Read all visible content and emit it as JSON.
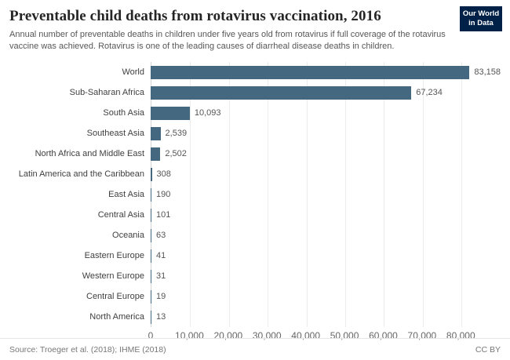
{
  "header": {
    "title": "Preventable child deaths from rotavirus vaccination, 2016",
    "subtitle": "Annual number of preventable deaths in children under five years old from rotavirus if full coverage of the rotavirus vaccine was achieved. Rotavirus is one of the leading causes of diarrheal disease deaths in children.",
    "logo": {
      "line1": "Our World",
      "line2": "in Data",
      "bg_color": "#002147"
    }
  },
  "chart_data": {
    "type": "bar",
    "orientation": "horizontal",
    "title": "Preventable child deaths from rotavirus vaccination, 2016",
    "categories": [
      "World",
      "Sub-Saharan Africa",
      "South Asia",
      "Southeast Asia",
      "North Africa and Middle East",
      "Latin America and the Caribbean",
      "East Asia",
      "Central Asia",
      "Oceania",
      "Eastern Europe",
      "Western Europe",
      "Central Europe",
      "North America"
    ],
    "values": [
      83158,
      67234,
      10093,
      2539,
      2502,
      308,
      190,
      101,
      63,
      41,
      31,
      19,
      13
    ],
    "value_labels": [
      "83,158",
      "67,234",
      "10,093",
      "2,539",
      "2,502",
      "308",
      "190",
      "101",
      "63",
      "41",
      "31",
      "19",
      "13"
    ],
    "xlim": [
      0,
      85000
    ],
    "x_ticks": [
      {
        "value": 0,
        "label": "0"
      },
      {
        "value": 10000,
        "label": "10,000"
      },
      {
        "value": 20000,
        "label": "20,000"
      },
      {
        "value": 30000,
        "label": "30,000"
      },
      {
        "value": 40000,
        "label": "40,000"
      },
      {
        "value": 50000,
        "label": "50,000"
      },
      {
        "value": 60000,
        "label": "60,000"
      },
      {
        "value": 70000,
        "label": "70,000"
      },
      {
        "value": 80000,
        "label": "80,000"
      }
    ],
    "bar_color": "#44687f",
    "grid": true,
    "legend": "none"
  },
  "footer": {
    "source": "Source: Troeger et al. (2018); IHME (2018)",
    "license": "CC BY"
  }
}
